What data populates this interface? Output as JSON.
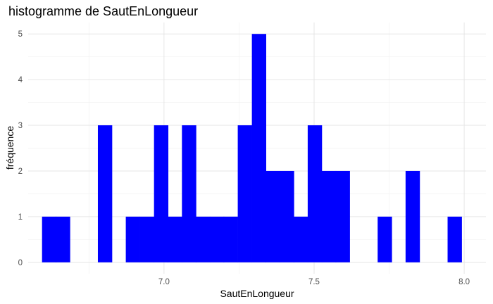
{
  "chart_data": {
    "type": "bar",
    "title": "histogramme de SautEnLongueur",
    "xlabel": "SautEnLongueur",
    "ylabel": "fréquence",
    "bar_color": "#0000FF",
    "grid": true,
    "xlim": [
      6.5475,
      8.0725
    ],
    "ylim": [
      -0.25,
      5.25
    ],
    "x_major_ticks": [
      7.0,
      7.5,
      8.0
    ],
    "x_tick_labels": [
      "7.0",
      "7.5",
      "8.0"
    ],
    "x_minor_ticks": [
      6.75,
      7.25,
      7.75
    ],
    "y_major_ticks": [
      0,
      1,
      2,
      3,
      4,
      5
    ],
    "y_tick_labels": [
      "0",
      "1",
      "2",
      "3",
      "4",
      "5"
    ],
    "y_minor_ticks": [
      0.5,
      1.5,
      2.5,
      3.5,
      4.5
    ],
    "bin_width": 0.0466,
    "bins": [
      {
        "x": 6.617,
        "count": 1
      },
      {
        "x": 6.663,
        "count": 1
      },
      {
        "x": 6.71,
        "count": 0
      },
      {
        "x": 6.757,
        "count": 0
      },
      {
        "x": 6.803,
        "count": 3
      },
      {
        "x": 6.85,
        "count": 0
      },
      {
        "x": 6.896,
        "count": 1
      },
      {
        "x": 6.943,
        "count": 1
      },
      {
        "x": 6.99,
        "count": 3
      },
      {
        "x": 7.036,
        "count": 1
      },
      {
        "x": 7.083,
        "count": 3
      },
      {
        "x": 7.129,
        "count": 1
      },
      {
        "x": 7.176,
        "count": 1
      },
      {
        "x": 7.222,
        "count": 1
      },
      {
        "x": 7.269,
        "count": 3
      },
      {
        "x": 7.316,
        "count": 5
      },
      {
        "x": 7.362,
        "count": 2
      },
      {
        "x": 7.409,
        "count": 2
      },
      {
        "x": 7.455,
        "count": 1
      },
      {
        "x": 7.502,
        "count": 3
      },
      {
        "x": 7.549,
        "count": 2
      },
      {
        "x": 7.595,
        "count": 2
      },
      {
        "x": 7.642,
        "count": 0
      },
      {
        "x": 7.688,
        "count": 0
      },
      {
        "x": 7.735,
        "count": 1
      },
      {
        "x": 7.781,
        "count": 0
      },
      {
        "x": 7.828,
        "count": 2
      },
      {
        "x": 7.875,
        "count": 0
      },
      {
        "x": 7.921,
        "count": 0
      },
      {
        "x": 7.968,
        "count": 1
      }
    ]
  }
}
